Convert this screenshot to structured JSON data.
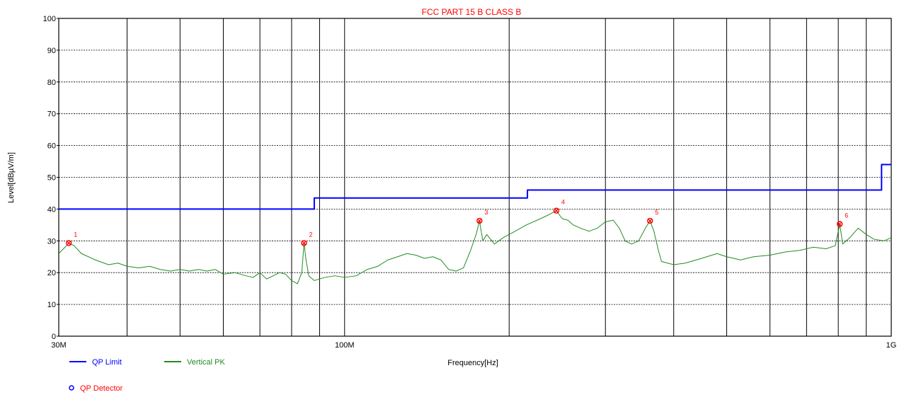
{
  "chart_data": {
    "type": "line",
    "title": "FCC PART 15 B CLASS B",
    "xlabel": "Frequency[Hz]",
    "ylabel": "Level[dBµV/m]",
    "x_scale": "log",
    "xlim": [
      30,
      1000
    ],
    "ylim": [
      0,
      100
    ],
    "x_tick_labels": [
      {
        "x": 30,
        "label": "30M"
      },
      {
        "x": 100,
        "label": "100M"
      },
      {
        "x": 1000,
        "label": "1G"
      }
    ],
    "x_gridlines": [
      30,
      40,
      50,
      60,
      70,
      80,
      90,
      100,
      200,
      300,
      400,
      500,
      600,
      700,
      800,
      900,
      1000
    ],
    "y_ticks": [
      0,
      10,
      20,
      30,
      40,
      50,
      60,
      70,
      80,
      90,
      100
    ],
    "grid": true,
    "series": [
      {
        "name": "QP Limit",
        "color": "#0000ff",
        "step": true,
        "points": [
          [
            30,
            40
          ],
          [
            88,
            40
          ],
          [
            88,
            43.5
          ],
          [
            216,
            43.5
          ],
          [
            216,
            46
          ],
          [
            960,
            46
          ],
          [
            960,
            54
          ],
          [
            1000,
            54
          ]
        ]
      },
      {
        "name": "Vertical PK",
        "color": "#228b22",
        "points": [
          [
            30,
            26
          ],
          [
            30.8,
            28
          ],
          [
            31.3,
            29.3
          ],
          [
            32,
            28.5
          ],
          [
            33,
            26
          ],
          [
            35,
            24
          ],
          [
            37,
            22.5
          ],
          [
            38.5,
            23
          ],
          [
            40,
            22
          ],
          [
            42,
            21.5
          ],
          [
            44,
            22
          ],
          [
            46,
            21
          ],
          [
            48,
            20.5
          ],
          [
            50,
            21
          ],
          [
            52,
            20.5
          ],
          [
            54,
            21
          ],
          [
            56,
            20.5
          ],
          [
            58,
            21
          ],
          [
            60,
            19.5
          ],
          [
            63,
            20
          ],
          [
            66,
            19
          ],
          [
            68,
            18.5
          ],
          [
            70,
            20
          ],
          [
            72,
            18
          ],
          [
            74,
            19
          ],
          [
            76,
            20
          ],
          [
            78,
            19.5
          ],
          [
            80,
            17.5
          ],
          [
            82,
            16.5
          ],
          [
            83.5,
            20
          ],
          [
            84.3,
            29.3
          ],
          [
            85,
            24
          ],
          [
            86,
            19
          ],
          [
            88,
            17.5
          ],
          [
            92,
            18.5
          ],
          [
            96,
            19
          ],
          [
            100,
            18.5
          ],
          [
            105,
            19
          ],
          [
            110,
            21
          ],
          [
            115,
            22
          ],
          [
            120,
            24
          ],
          [
            125,
            25
          ],
          [
            130,
            26
          ],
          [
            135,
            25.5
          ],
          [
            140,
            24.5
          ],
          [
            145,
            25
          ],
          [
            150,
            24
          ],
          [
            155,
            21
          ],
          [
            160,
            20.5
          ],
          [
            165,
            21.5
          ],
          [
            170,
            27
          ],
          [
            174,
            32
          ],
          [
            176.5,
            36.3
          ],
          [
            179,
            30
          ],
          [
            182,
            32
          ],
          [
            188,
            29
          ],
          [
            195,
            31
          ],
          [
            205,
            33
          ],
          [
            215,
            35
          ],
          [
            225,
            36.5
          ],
          [
            235,
            38
          ],
          [
            244,
            39.5
          ],
          [
            250,
            37
          ],
          [
            256,
            36.5
          ],
          [
            262,
            35
          ],
          [
            270,
            34
          ],
          [
            280,
            33
          ],
          [
            290,
            34
          ],
          [
            300,
            36
          ],
          [
            310,
            36.5
          ],
          [
            318,
            34
          ],
          [
            326,
            30
          ],
          [
            335,
            29
          ],
          [
            345,
            30
          ],
          [
            355,
            34
          ],
          [
            362,
            36.3
          ],
          [
            368,
            33
          ],
          [
            375,
            27
          ],
          [
            380,
            23.5
          ],
          [
            400,
            22.5
          ],
          [
            420,
            23
          ],
          [
            450,
            24.5
          ],
          [
            480,
            26
          ],
          [
            500,
            25
          ],
          [
            530,
            24
          ],
          [
            560,
            25
          ],
          [
            600,
            25.5
          ],
          [
            640,
            26.5
          ],
          [
            680,
            27
          ],
          [
            720,
            28
          ],
          [
            760,
            27.5
          ],
          [
            790,
            28.5
          ],
          [
            805,
            35.3
          ],
          [
            815,
            29
          ],
          [
            840,
            31
          ],
          [
            870,
            34
          ],
          [
            900,
            32
          ],
          [
            930,
            30.5
          ],
          [
            970,
            30
          ],
          [
            1000,
            31
          ]
        ]
      }
    ],
    "markers": [
      {
        "id": "1",
        "x": 31.3,
        "y": 29.3
      },
      {
        "id": "2",
        "x": 84.3,
        "y": 29.3
      },
      {
        "id": "3",
        "x": 176.5,
        "y": 36.3
      },
      {
        "id": "4",
        "x": 244,
        "y": 39.5
      },
      {
        "id": "5",
        "x": 362,
        "y": 36.3
      },
      {
        "id": "6",
        "x": 805,
        "y": 35.3
      }
    ],
    "legend": {
      "position": "bottom-left",
      "items": [
        {
          "label": "QP Limit",
          "color": "#0000ff",
          "style": "line"
        },
        {
          "label": "Vertical PK",
          "color": "#228b22",
          "style": "line"
        },
        {
          "label": "QP Detector",
          "color": "#0000ff",
          "style": "circle"
        }
      ]
    },
    "colors": {
      "title": "#ff0000",
      "markers": "#ff0000",
      "legend_detector_text": "#ff0000"
    }
  }
}
